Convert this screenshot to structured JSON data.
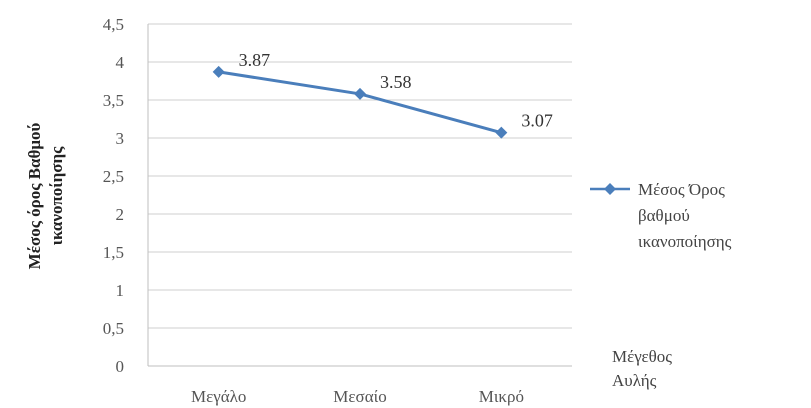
{
  "chart_data": {
    "type": "line",
    "categories": [
      "Μεγάλο",
      "Μεσαίο",
      "Μικρό"
    ],
    "series": [
      {
        "name": "Μέσος Όρος βαθμού ικανοποίησης",
        "values": [
          3.87,
          3.58,
          3.07
        ],
        "data_labels": [
          "3.87",
          "3.58",
          "3.07"
        ],
        "color": "#4a7ebb"
      }
    ],
    "ylabel_lines": [
      "Μέσος όρος Βαθμού",
      "ικανοποίησης"
    ],
    "xlabel_lines": [
      "Μέγεθος",
      "Αυλής"
    ],
    "legend_lines": [
      "Μέσος Όρος",
      "βαθμού",
      "ικανοποίησης"
    ],
    "ylim": [
      0,
      4.5
    ],
    "yticks": [
      0,
      0.5,
      1,
      1.5,
      2,
      2.5,
      3,
      3.5,
      4,
      4.5
    ],
    "ytick_labels": [
      "0",
      "0,5",
      "1",
      "1,5",
      "2",
      "2,5",
      "3",
      "3,5",
      "4",
      "4,5"
    ],
    "grid": true,
    "legend_position": "right",
    "marker": "diamond"
  }
}
